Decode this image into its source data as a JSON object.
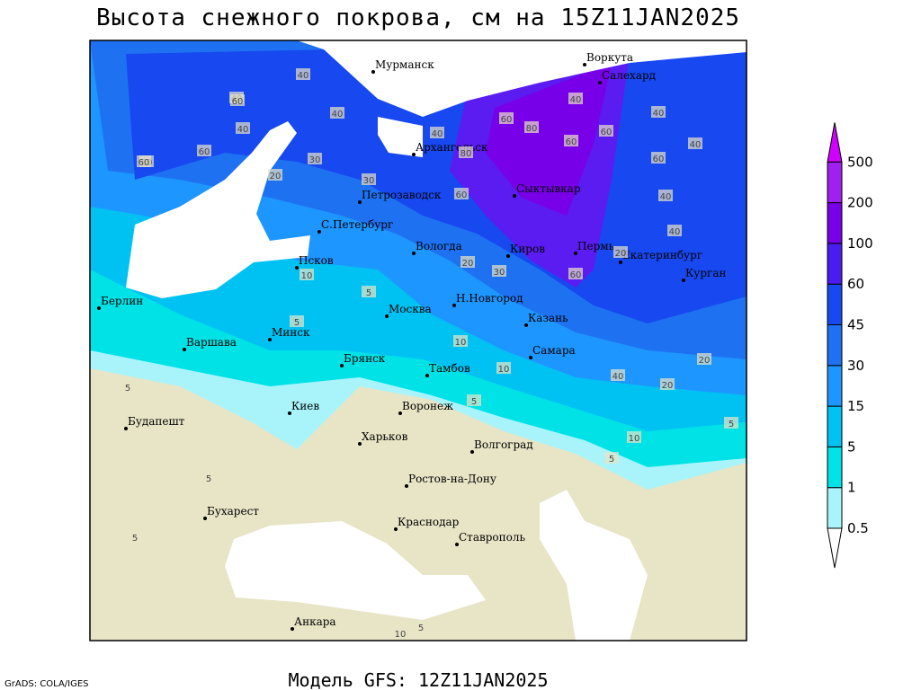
{
  "title": "Высота снежного покрова, см на 15Z11JAN2025",
  "footer": "Модель GFS: 12Z11JAN2025",
  "credit": "GrADS: COLA/IGES",
  "legend": {
    "levels": [
      0.5,
      1,
      5,
      15,
      30,
      45,
      60,
      100,
      200,
      500
    ],
    "colors": [
      "#ffffff",
      "#a8f4fa",
      "#00e2e6",
      "#00c2f2",
      "#1e96ff",
      "#1e72f2",
      "#1848f0",
      "#4a1cf0",
      "#7800e8",
      "#a020f0",
      "#d000ff"
    ]
  },
  "cities": [
    "Мурманск",
    "Воркута",
    "Салехард",
    "Архангельск",
    "Сыктывкар",
    "Петрозаводск",
    "С.Петербург",
    "Вологда",
    "Киров",
    "Пермь",
    "Екатеринбург",
    "Курган",
    "Псков",
    "Н.Новгород",
    "Москва",
    "Казань",
    "Берлин",
    "Варшава",
    "Минск",
    "Брянск",
    "Тамбов",
    "Самара",
    "Киев",
    "Воронеж",
    "Харьков",
    "Волгоград",
    "Будапешт",
    "Ростов-на-Дону",
    "Бухарест",
    "Краснодар",
    "Ставрополь",
    "Анкара"
  ],
  "contour_labels": [
    60,
    40,
    60,
    40,
    40,
    30,
    60,
    60,
    20,
    30,
    40,
    60,
    40,
    80,
    60,
    80,
    60,
    40,
    60,
    40,
    40,
    60,
    40,
    40,
    60,
    20,
    10,
    5,
    5,
    30,
    20,
    5,
    10,
    10,
    5,
    40,
    20,
    20,
    10,
    5,
    5,
    5,
    5,
    5,
    10
  ]
}
